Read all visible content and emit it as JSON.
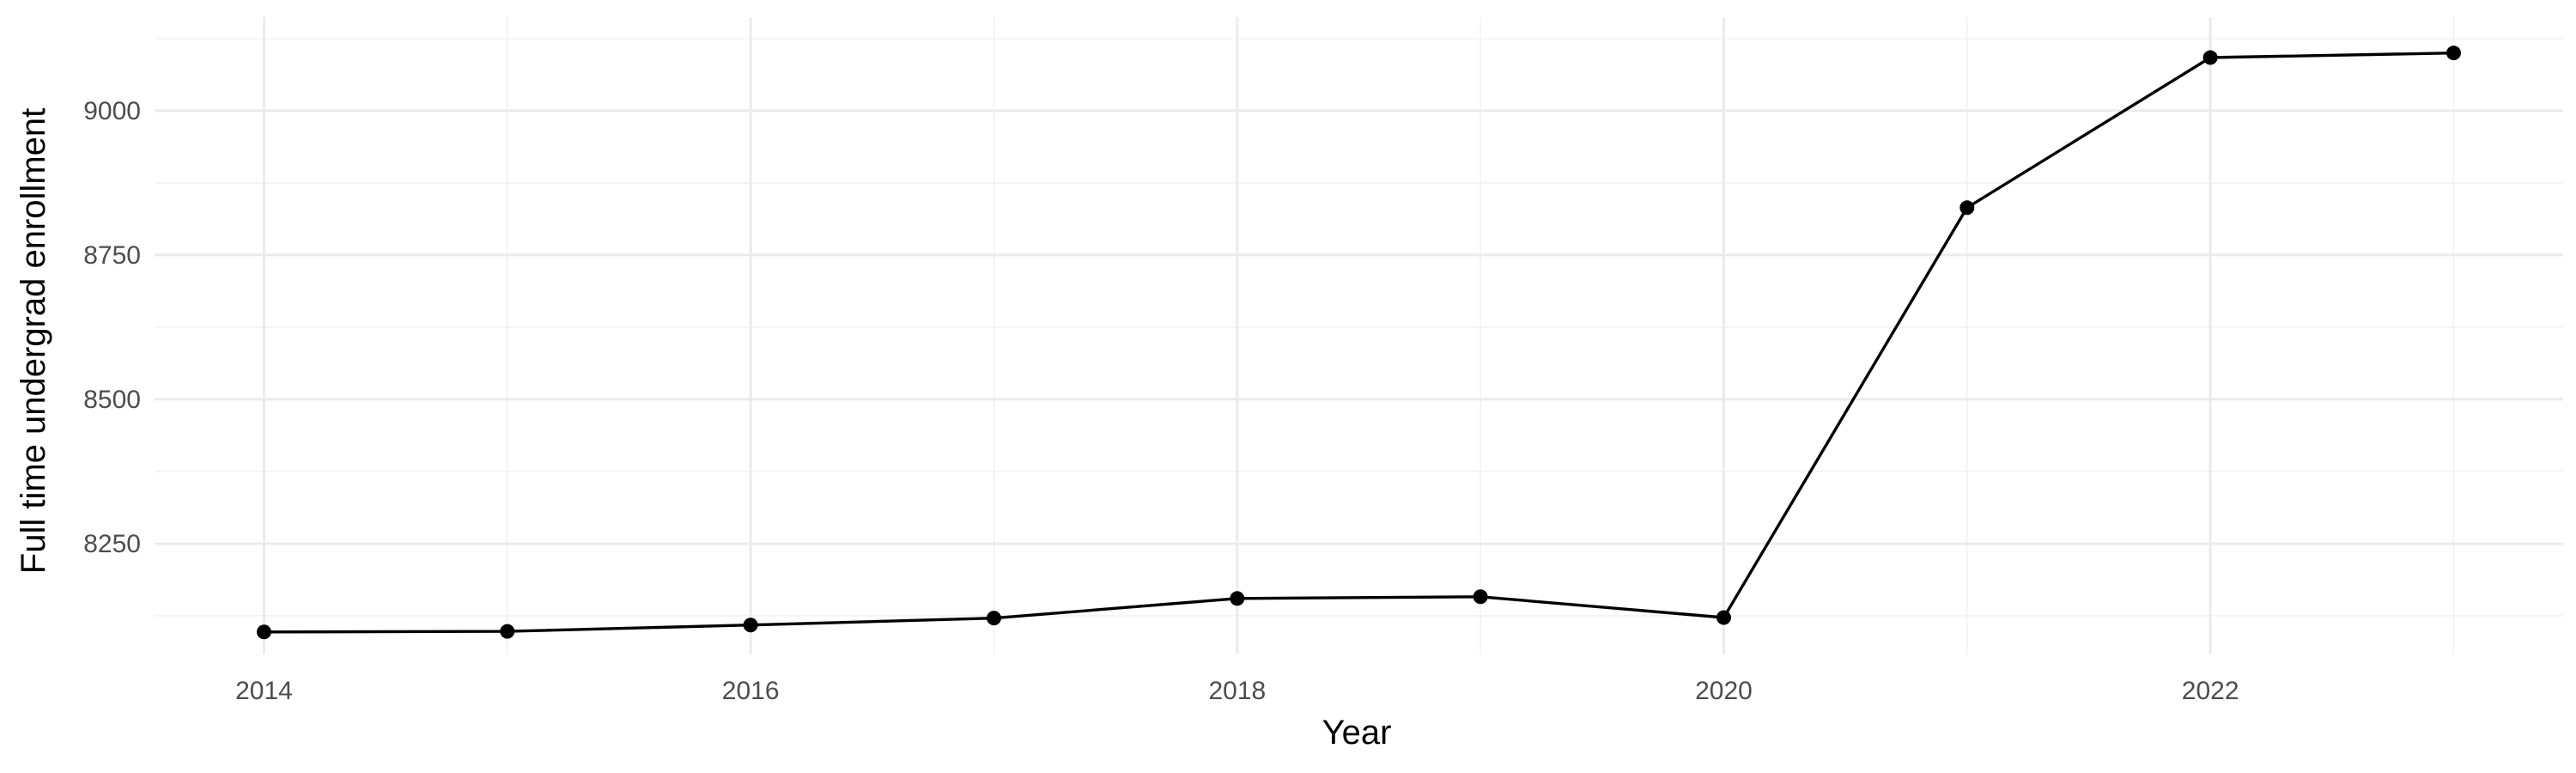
{
  "chart_data": {
    "type": "line",
    "title": "",
    "xlabel": "Year",
    "ylabel": "Full time undergrad enrollment",
    "x": [
      2014,
      2015,
      2016,
      2017,
      2018,
      2019,
      2020,
      2021,
      2022,
      2023
    ],
    "series": [
      {
        "values": [
          8097,
          8098,
          8109,
          8121,
          8155,
          8158,
          8122,
          8832,
          9092,
          9100
        ]
      }
    ],
    "xlim": [
      2013.55,
      2023.45
    ],
    "ylim": [
      8058,
      9162
    ],
    "x_ticks": [
      "2014",
      "2016",
      "2018",
      "2020",
      "2022"
    ],
    "y_ticks": [
      "8250",
      "8500",
      "8750",
      "9000"
    ],
    "grid": true,
    "legend": "none",
    "colors": {
      "line": "#000000",
      "points": "#000000",
      "grid": "#ebebeb",
      "background": "#ffffff"
    }
  }
}
